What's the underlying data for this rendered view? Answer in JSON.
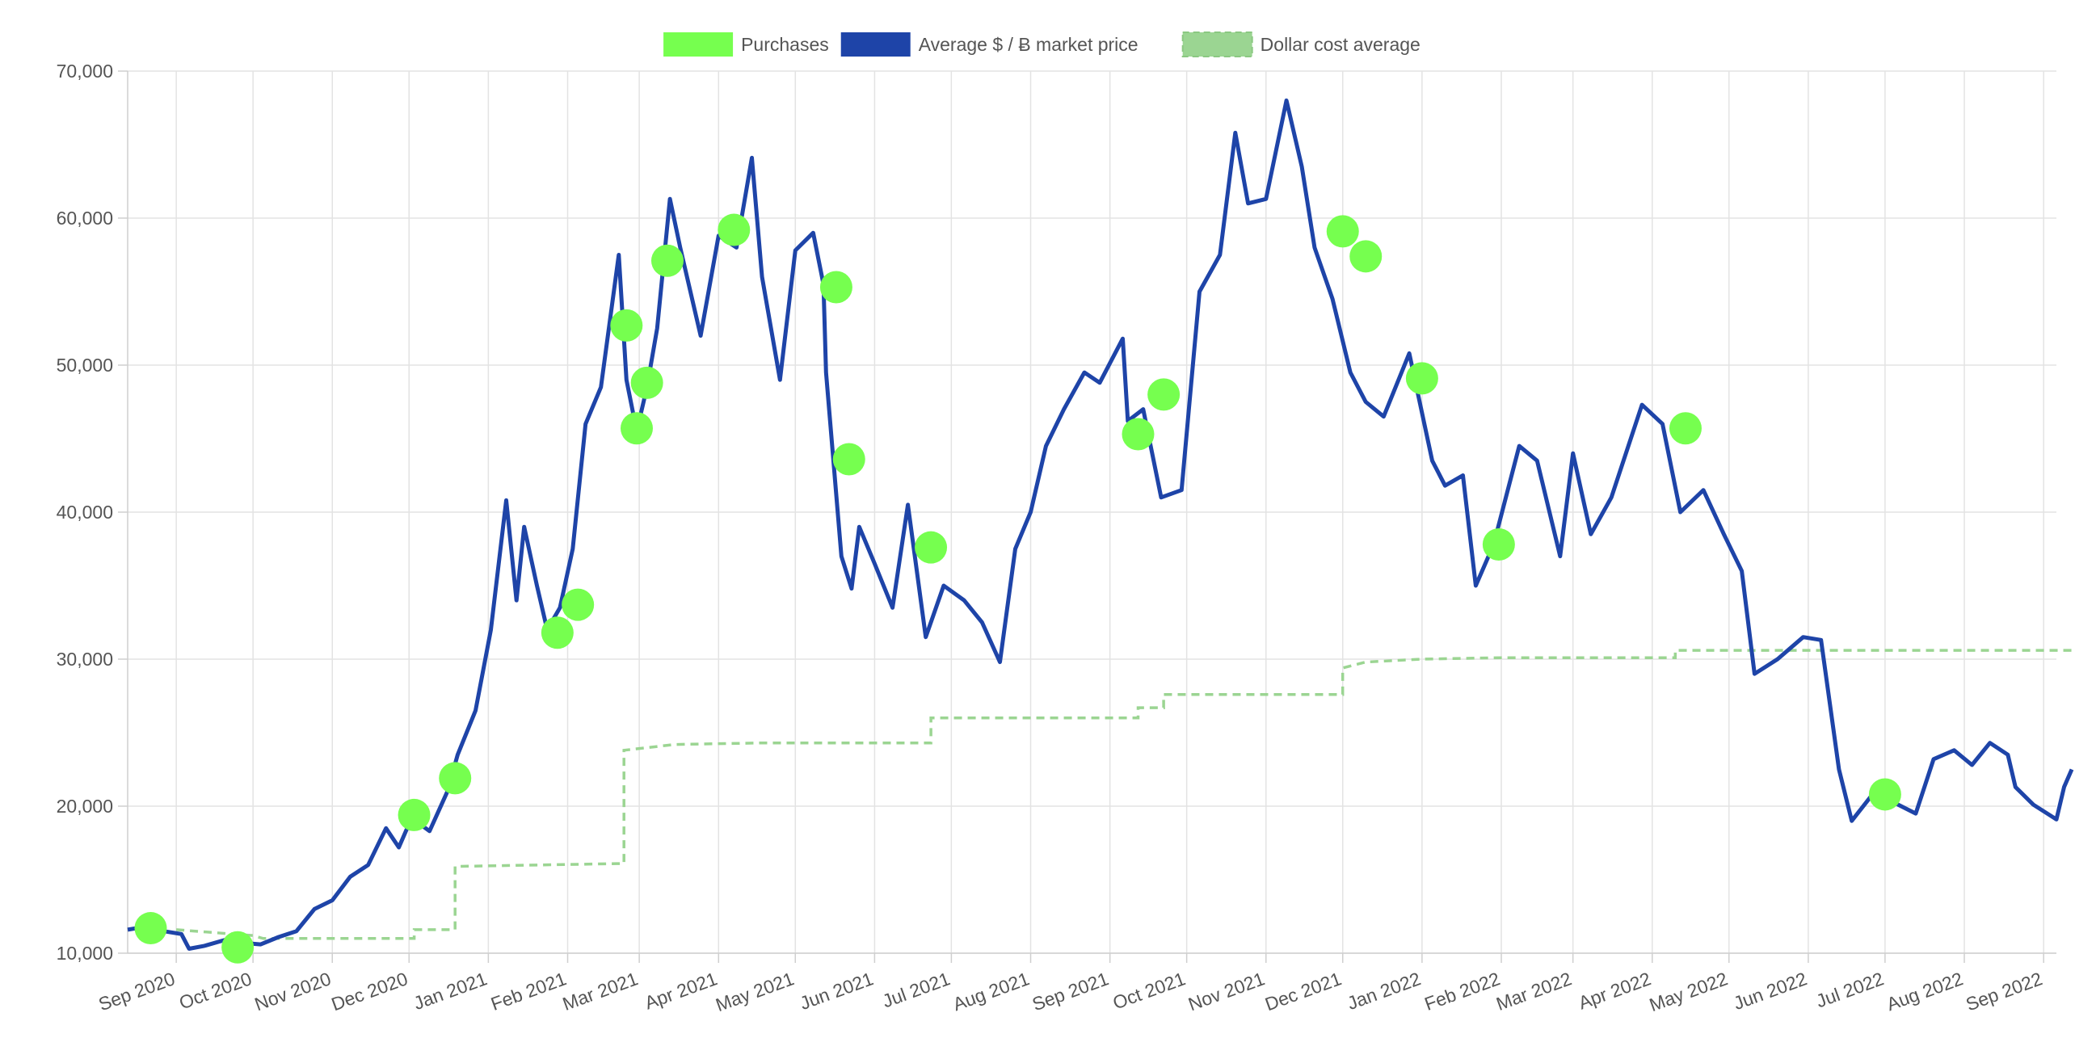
{
  "chart_data": {
    "type": "line",
    "legend": {
      "placement": "top-center",
      "entries": [
        {
          "label": "Purchases",
          "color": "#76FF4F",
          "style": "point"
        },
        {
          "label": "Average $ / Ƀ market price",
          "color": "#1E44A8",
          "style": "solid-line"
        },
        {
          "label": "Dollar cost average",
          "color": "#9BD592",
          "style": "dashed-line"
        }
      ]
    },
    "grid": true,
    "ylim": [
      10000,
      70000
    ],
    "y_ticks": [
      10000,
      20000,
      30000,
      40000,
      50000,
      60000,
      70000
    ],
    "y_tick_labels": [
      "10,000",
      "20,000",
      "30,000",
      "40,000",
      "50,000",
      "60,000",
      "70,000"
    ],
    "x_range": [
      "2020-08-13",
      "2022-09-06"
    ],
    "x_ticks": [
      {
        "date": "2020-09-01",
        "label": "Sep 2020"
      },
      {
        "date": "2020-10-01",
        "label": "Oct 2020"
      },
      {
        "date": "2020-11-01",
        "label": "Nov 2020"
      },
      {
        "date": "2020-12-01",
        "label": "Dec 2020"
      },
      {
        "date": "2021-01-01",
        "label": "Jan 2021"
      },
      {
        "date": "2021-02-01",
        "label": "Feb 2021"
      },
      {
        "date": "2021-03-01",
        "label": "Mar 2021"
      },
      {
        "date": "2021-04-01",
        "label": "Apr 2021"
      },
      {
        "date": "2021-05-01",
        "label": "May 2021"
      },
      {
        "date": "2021-06-01",
        "label": "Jun 2021"
      },
      {
        "date": "2021-07-01",
        "label": "Jul 2021"
      },
      {
        "date": "2021-08-01",
        "label": "Aug 2021"
      },
      {
        "date": "2021-09-01",
        "label": "Sep 2021"
      },
      {
        "date": "2021-10-01",
        "label": "Oct 2021"
      },
      {
        "date": "2021-11-01",
        "label": "Nov 2021"
      },
      {
        "date": "2021-12-01",
        "label": "Dec 2021"
      },
      {
        "date": "2022-01-01",
        "label": "Jan 2022"
      },
      {
        "date": "2022-02-01",
        "label": "Feb 2022"
      },
      {
        "date": "2022-03-01",
        "label": "Mar 2022"
      },
      {
        "date": "2022-04-01",
        "label": "Apr 2022"
      },
      {
        "date": "2022-05-01",
        "label": "May 2022"
      },
      {
        "date": "2022-06-01",
        "label": "Jun 2022"
      },
      {
        "date": "2022-07-01",
        "label": "Jul 2022"
      },
      {
        "date": "2022-08-01",
        "label": "Aug 2022"
      },
      {
        "date": "2022-09-01",
        "label": "Sep 2022"
      }
    ],
    "series": [
      {
        "name": "Average $ / Ƀ market price",
        "color": "#1E44A8",
        "points": [
          [
            "2020-08-13",
            11600
          ],
          [
            "2020-08-20",
            11800
          ],
          [
            "2020-08-27",
            11500
          ],
          [
            "2020-09-03",
            11300
          ],
          [
            "2020-09-06",
            10300
          ],
          [
            "2020-09-12",
            10500
          ],
          [
            "2020-09-20",
            10900
          ],
          [
            "2020-09-27",
            10700
          ],
          [
            "2020-10-04",
            10600
          ],
          [
            "2020-10-11",
            11100
          ],
          [
            "2020-10-18",
            11500
          ],
          [
            "2020-10-25",
            13000
          ],
          [
            "2020-11-01",
            13600
          ],
          [
            "2020-11-08",
            15200
          ],
          [
            "2020-11-15",
            16000
          ],
          [
            "2020-11-22",
            18500
          ],
          [
            "2020-11-27",
            17200
          ],
          [
            "2020-12-02",
            19200
          ],
          [
            "2020-12-09",
            18300
          ],
          [
            "2020-12-16",
            21000
          ],
          [
            "2020-12-20",
            23500
          ],
          [
            "2020-12-27",
            26500
          ],
          [
            "2021-01-02",
            32000
          ],
          [
            "2021-01-08",
            40800
          ],
          [
            "2021-01-12",
            34000
          ],
          [
            "2021-01-15",
            39000
          ],
          [
            "2021-01-20",
            35000
          ],
          [
            "2021-01-24",
            32000
          ],
          [
            "2021-01-29",
            33500
          ],
          [
            "2021-02-03",
            37500
          ],
          [
            "2021-02-08",
            46000
          ],
          [
            "2021-02-14",
            48500
          ],
          [
            "2021-02-21",
            57500
          ],
          [
            "2021-02-24",
            49000
          ],
          [
            "2021-02-28",
            45500
          ],
          [
            "2021-03-04",
            48500
          ],
          [
            "2021-03-08",
            52500
          ],
          [
            "2021-03-13",
            61300
          ],
          [
            "2021-03-17",
            58000
          ],
          [
            "2021-03-25",
            52000
          ],
          [
            "2021-04-01",
            58800
          ],
          [
            "2021-04-08",
            58000
          ],
          [
            "2021-04-14",
            64100
          ],
          [
            "2021-04-18",
            56000
          ],
          [
            "2021-04-25",
            49000
          ],
          [
            "2021-05-01",
            57800
          ],
          [
            "2021-05-08",
            59000
          ],
          [
            "2021-05-12",
            55500
          ],
          [
            "2021-05-13",
            49500
          ],
          [
            "2021-05-19",
            37000
          ],
          [
            "2021-05-23",
            34800
          ],
          [
            "2021-05-26",
            39000
          ],
          [
            "2021-06-01",
            36500
          ],
          [
            "2021-06-08",
            33500
          ],
          [
            "2021-06-14",
            40500
          ],
          [
            "2021-06-21",
            31500
          ],
          [
            "2021-06-28",
            35000
          ],
          [
            "2021-07-06",
            34000
          ],
          [
            "2021-07-13",
            32500
          ],
          [
            "2021-07-20",
            29800
          ],
          [
            "2021-07-26",
            37500
          ],
          [
            "2021-08-01",
            40000
          ],
          [
            "2021-08-07",
            44500
          ],
          [
            "2021-08-14",
            47000
          ],
          [
            "2021-08-22",
            49500
          ],
          [
            "2021-08-28",
            48800
          ],
          [
            "2021-09-06",
            51800
          ],
          [
            "2021-09-08",
            46200
          ],
          [
            "2021-09-14",
            47000
          ],
          [
            "2021-09-21",
            41000
          ],
          [
            "2021-09-29",
            41500
          ],
          [
            "2021-10-06",
            55000
          ],
          [
            "2021-10-14",
            57500
          ],
          [
            "2021-10-20",
            65800
          ],
          [
            "2021-10-25",
            61000
          ],
          [
            "2021-11-01",
            61300
          ],
          [
            "2021-11-09",
            68000
          ],
          [
            "2021-11-15",
            63500
          ],
          [
            "2021-11-20",
            58000
          ],
          [
            "2021-11-27",
            54500
          ],
          [
            "2021-12-04",
            49500
          ],
          [
            "2021-12-10",
            47500
          ],
          [
            "2021-12-17",
            46500
          ],
          [
            "2021-12-27",
            50800
          ],
          [
            "2022-01-05",
            43500
          ],
          [
            "2022-01-10",
            41800
          ],
          [
            "2022-01-17",
            42500
          ],
          [
            "2022-01-22",
            35000
          ],
          [
            "2022-01-29",
            37800
          ],
          [
            "2022-02-08",
            44500
          ],
          [
            "2022-02-15",
            43500
          ],
          [
            "2022-02-24",
            37000
          ],
          [
            "2022-03-01",
            44000
          ],
          [
            "2022-03-08",
            38500
          ],
          [
            "2022-03-16",
            41000
          ],
          [
            "2022-03-28",
            47300
          ],
          [
            "2022-04-05",
            46000
          ],
          [
            "2022-04-12",
            40000
          ],
          [
            "2022-04-21",
            41500
          ],
          [
            "2022-04-29",
            38500
          ],
          [
            "2022-05-06",
            36000
          ],
          [
            "2022-05-11",
            29000
          ],
          [
            "2022-05-20",
            30000
          ],
          [
            "2022-05-30",
            31500
          ],
          [
            "2022-06-06",
            31300
          ],
          [
            "2022-06-13",
            22500
          ],
          [
            "2022-06-18",
            19000
          ],
          [
            "2022-06-27",
            21000
          ],
          [
            "2022-07-05",
            20200
          ],
          [
            "2022-07-13",
            19500
          ],
          [
            "2022-07-20",
            23200
          ],
          [
            "2022-07-28",
            23800
          ],
          [
            "2022-08-04",
            22800
          ],
          [
            "2022-08-11",
            24300
          ],
          [
            "2022-08-18",
            23500
          ],
          [
            "2022-08-21",
            21300
          ],
          [
            "2022-08-28",
            20100
          ],
          [
            "2022-09-06",
            19100
          ],
          [
            "2022-09-09",
            21300
          ],
          [
            "2022-09-12",
            22500
          ]
        ]
      },
      {
        "name": "Dollar cost average",
        "color": "#9BD592",
        "step": true,
        "points": [
          [
            "2020-09-01",
            11600
          ],
          [
            "2020-10-01",
            11200
          ],
          [
            "2020-10-05",
            11000
          ],
          [
            "2020-12-03",
            11000
          ],
          [
            "2020-12-03",
            11600
          ],
          [
            "2020-12-19",
            11600
          ],
          [
            "2020-12-19",
            15900
          ],
          [
            "2021-02-23",
            16100
          ],
          [
            "2021-02-23",
            23800
          ],
          [
            "2021-03-15",
            24200
          ],
          [
            "2021-04-18",
            24300
          ],
          [
            "2021-06-23",
            24300
          ],
          [
            "2021-06-23",
            26000
          ],
          [
            "2021-09-12",
            26000
          ],
          [
            "2021-09-12",
            26700
          ],
          [
            "2021-09-22",
            26700
          ],
          [
            "2021-09-22",
            27600
          ],
          [
            "2021-12-01",
            27600
          ],
          [
            "2021-12-01",
            29400
          ],
          [
            "2021-12-10",
            29800
          ],
          [
            "2022-01-01",
            30000
          ],
          [
            "2022-02-01",
            30100
          ],
          [
            "2022-04-10",
            30100
          ],
          [
            "2022-04-10",
            30600
          ],
          [
            "2022-06-01",
            30600
          ],
          [
            "2022-09-12",
            30600
          ]
        ]
      }
    ],
    "purchases": {
      "name": "Purchases",
      "color": "#76FF4F",
      "points": [
        [
          "2020-08-22",
          11700
        ],
        [
          "2020-09-25",
          10400
        ],
        [
          "2020-12-03",
          19400
        ],
        [
          "2020-12-19",
          21900
        ],
        [
          "2021-01-28",
          31800
        ],
        [
          "2021-02-05",
          33700
        ],
        [
          "2021-02-24",
          52700
        ],
        [
          "2021-02-28",
          45700
        ],
        [
          "2021-03-04",
          48800
        ],
        [
          "2021-03-12",
          57100
        ],
        [
          "2021-04-07",
          59200
        ],
        [
          "2021-05-17",
          55300
        ],
        [
          "2021-05-22",
          43600
        ],
        [
          "2021-06-23",
          37600
        ],
        [
          "2021-09-12",
          45300
        ],
        [
          "2021-09-22",
          48000
        ],
        [
          "2021-12-01",
          59100
        ],
        [
          "2021-12-10",
          57400
        ],
        [
          "2022-01-01",
          49100
        ],
        [
          "2022-01-31",
          37800
        ],
        [
          "2022-04-14",
          45700
        ],
        [
          "2022-07-01",
          20800
        ]
      ]
    }
  }
}
